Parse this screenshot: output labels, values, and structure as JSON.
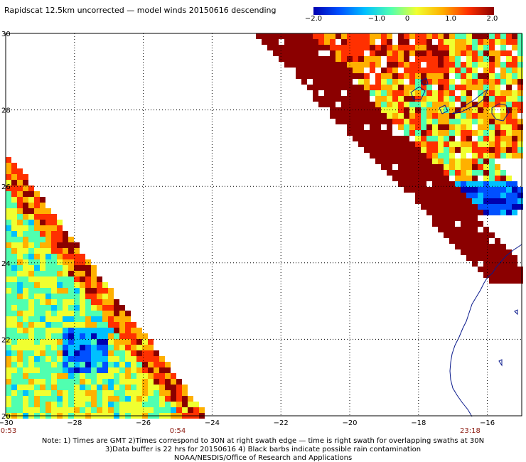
{
  "title": "Rapidscat 12.5km uncorrected — model winds 20150616 descending",
  "colorbar": {
    "tick_labels": [
      "−2.0",
      "−1.0",
      "0",
      "1.0",
      "2.0"
    ],
    "range": [
      -2.0,
      2.0
    ],
    "colors": [
      "#0000b0",
      "#0050ff",
      "#00c0ff",
      "#50ffb0",
      "#f0ff30",
      "#ffb000",
      "#ff3000",
      "#8b0000"
    ]
  },
  "axes": {
    "lon_ticks": [
      -30,
      -28,
      -26,
      -24,
      -22,
      -20,
      -18,
      -16
    ],
    "lon_labels": [
      "−30",
      "−28",
      "−26",
      "−24",
      "−22",
      "−20",
      "−18",
      "−16"
    ],
    "lat_ticks": [
      30,
      28,
      26,
      24,
      22,
      20
    ],
    "lat_labels": [
      "30",
      "28",
      "26",
      "24",
      "22",
      "20"
    ],
    "lon_range": [
      -30,
      -15
    ],
    "lat_range": [
      20,
      30
    ]
  },
  "times": [
    {
      "label": "0:53",
      "lon": -30
    },
    {
      "label": "0:54",
      "lon": -25
    },
    {
      "label": "23:18",
      "lon": -16.5
    }
  ],
  "notes": [
    "Note: 1) Times are GMT 2)Times correspond to 30N at right swath edge — time is right swath for overlapping swaths at 30N",
    "3)Data buffer is 22 hrs for 20150616 4) Black barbs indicate possible rain contamination",
    "NOAA/NESDIS/Office of Research and Applications"
  ]
}
